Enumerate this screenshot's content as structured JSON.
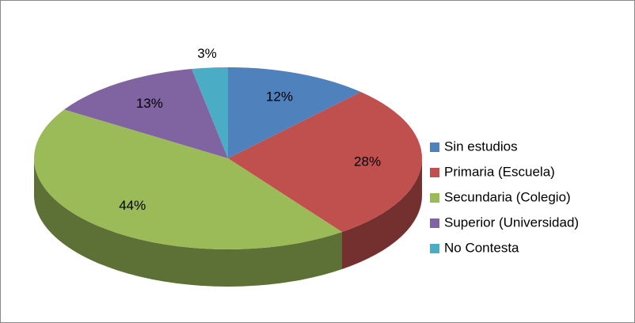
{
  "chart_data": {
    "type": "pie",
    "categories": [
      "Sin estudios",
      "Primaria (Escuela)",
      "Secundaria (Colegio)",
      "Superior (Universidad)",
      "No Contesta"
    ],
    "values": [
      12,
      28,
      44,
      13,
      3
    ],
    "value_labels": [
      "12%",
      "28%",
      "44%",
      "13%",
      "3%"
    ],
    "colors": [
      "#4f81bd",
      "#c0504d",
      "#9bbb59",
      "#8064a2",
      "#4bacc6"
    ],
    "legend": "right"
  }
}
